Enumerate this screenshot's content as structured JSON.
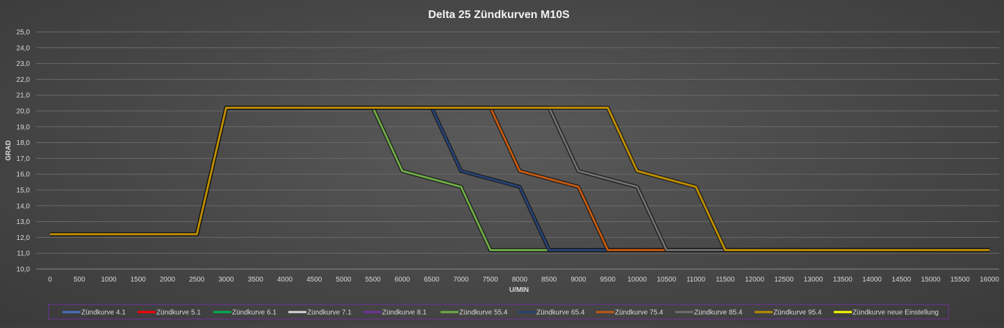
{
  "chart_data": {
    "type": "line",
    "title": "Delta 25 Zündkurven M10S",
    "xlabel": "U/MIN",
    "ylabel": "GRAD",
    "ylim": [
      10.0,
      25.0
    ],
    "xlim": [
      0,
      16000
    ],
    "grid": true,
    "legend_position": "bottom",
    "x_ticks": [
      "0",
      "500",
      "1000",
      "1500",
      "2000",
      "2500",
      "3000",
      "3500",
      "4000",
      "4500",
      "5000",
      "5500",
      "6000",
      "6500",
      "7000",
      "7500",
      "8000",
      "8500",
      "9000",
      "9500",
      "10000",
      "10500",
      "11000",
      "11500",
      "12000",
      "12500",
      "13000",
      "13500",
      "14000",
      "14500",
      "15000",
      "15500",
      "16000"
    ],
    "y_ticks": [
      "10,0",
      "11,0",
      "12,0",
      "13,0",
      "14,0",
      "15,0",
      "16,0",
      "17,0",
      "18,0",
      "19,0",
      "20,0",
      "21,0",
      "22,0",
      "23,0",
      "24,0",
      "25,0"
    ],
    "series": [
      {
        "name": "Zündkurve 4.1",
        "color": "#4472c4",
        "x": [],
        "y": []
      },
      {
        "name": "Zündkurve 5.1",
        "color": "#ff0000",
        "x": [],
        "y": []
      },
      {
        "name": "Zündkurve 6.1",
        "color": "#00b050",
        "x": [],
        "y": []
      },
      {
        "name": "Zündkurve 7.1",
        "color": "#d9d9d9",
        "x": [],
        "y": []
      },
      {
        "name": "Zündkurve 8.1",
        "color": "#7030a0",
        "x": [],
        "y": []
      },
      {
        "name": "Zündkurve 55.4",
        "color": "#70ad47",
        "x": [
          0,
          2500,
          3000,
          5500,
          6000,
          7000,
          7500,
          16000
        ],
        "y": [
          12.2,
          12.2,
          20.2,
          20.2,
          16.2,
          15.2,
          11.2,
          11.2
        ]
      },
      {
        "name": "Zündkurve 65.4",
        "color": "#264478",
        "x": [
          0,
          2500,
          3000,
          6500,
          7000,
          8000,
          8500,
          16000
        ],
        "y": [
          12.2,
          12.2,
          20.2,
          20.2,
          16.2,
          15.2,
          11.2,
          11.2
        ]
      },
      {
        "name": "Zündkurve 75.4",
        "color": "#c55a11",
        "x": [
          0,
          2500,
          3000,
          7500,
          8000,
          9000,
          9500,
          16000
        ],
        "y": [
          12.2,
          12.2,
          20.2,
          20.2,
          16.2,
          15.2,
          11.2,
          11.2
        ]
      },
      {
        "name": "Zündkurve 85.4",
        "color": "#707070",
        "x": [
          0,
          2500,
          3000,
          8500,
          9000,
          10000,
          10500,
          16000
        ],
        "y": [
          12.2,
          12.2,
          20.2,
          20.2,
          16.2,
          15.2,
          11.2,
          11.2
        ]
      },
      {
        "name": "Zündkurve 95.4",
        "color": "#bf8f00",
        "x": [
          0,
          2500,
          3000,
          9500,
          10000,
          11000,
          11500,
          16000
        ],
        "y": [
          12.2,
          12.2,
          20.2,
          20.2,
          16.2,
          15.2,
          11.2,
          11.2
        ]
      },
      {
        "name": "Zündkurve neue Einstellung",
        "color": "#ffff00",
        "x": [],
        "y": []
      }
    ]
  }
}
